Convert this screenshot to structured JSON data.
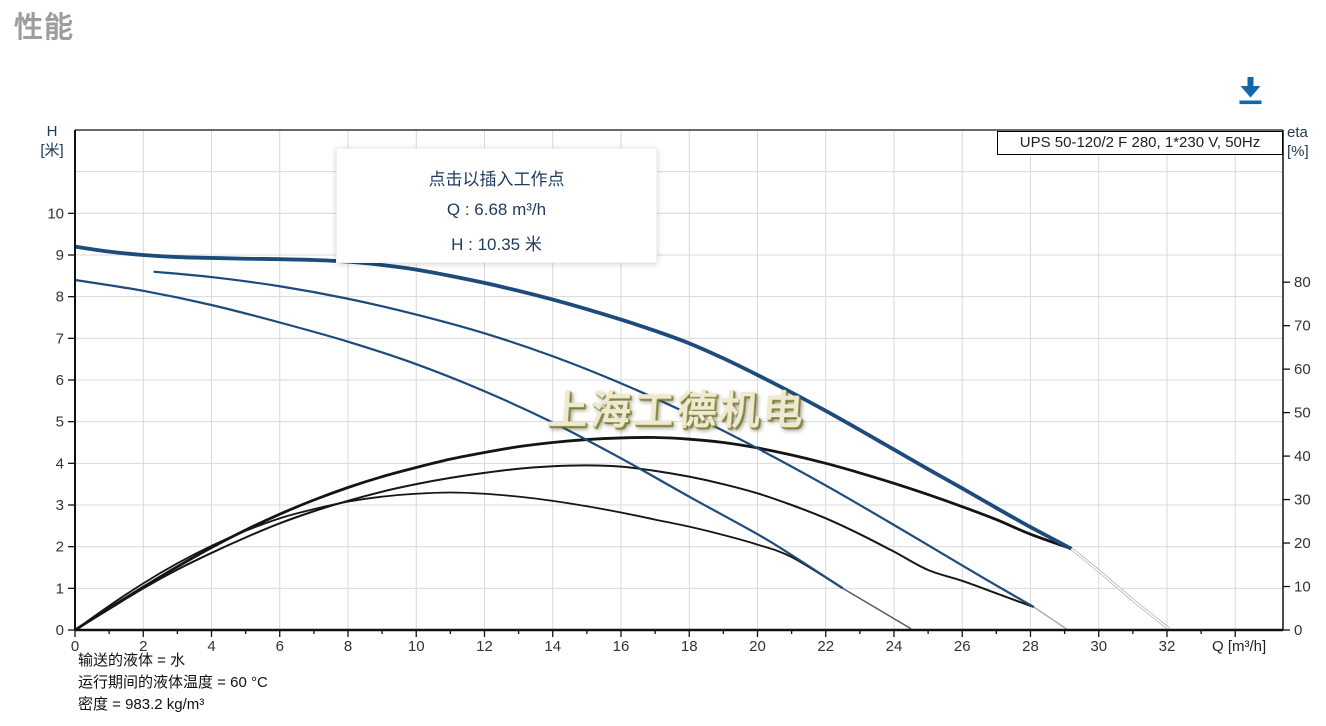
{
  "page": {
    "title": "性能"
  },
  "toolbar": {
    "download_icon": "download-arrow",
    "accent_color": "#1268ad"
  },
  "chart_data": {
    "type": "line",
    "pump_label": "UPS 50-120/2 F 280, 1*230 V, 50Hz",
    "watermark": "上海工德机电",
    "tooltip": {
      "title": "点击以插入工作点",
      "q_value": "Q : 6.68 m³/h",
      "h_value": "H : 10.35 米"
    },
    "footnotes": [
      "输送的液体 = 水",
      "运行期间的液体温度 = 60 °C",
      "密度 = 983.2 kg/m³"
    ],
    "x_axis": {
      "title": "Q [m³/h]",
      "min": 0,
      "max": 35.4,
      "grid_step": 2,
      "minor_tick_step": 1,
      "major_tick_step": 2,
      "tick_max": 34,
      "label_max": 32
    },
    "y_left": {
      "name": "H",
      "unit": "[米]",
      "min": 0,
      "max": 12,
      "grid_step": 1,
      "tick_step": 1,
      "label_max": 10
    },
    "y_right": {
      "name": "eta",
      "unit": "[%]",
      "min": 0,
      "max": 115,
      "tick_step": 10,
      "label_max": 80
    },
    "grid_color": "#d9d9d9",
    "frame_color": "#111111",
    "tick_label_color": "#333333",
    "series": [
      {
        "name": "eta-curve-speed3",
        "axis": "left",
        "color": "#141414",
        "width": 2.8,
        "points": [
          [
            0,
            0
          ],
          [
            1,
            0.52
          ],
          [
            2,
            1.03
          ],
          [
            3,
            1.52
          ],
          [
            4,
            1.98
          ],
          [
            5,
            2.4
          ],
          [
            6,
            2.78
          ],
          [
            7,
            3.12
          ],
          [
            8,
            3.42
          ],
          [
            9,
            3.68
          ],
          [
            10,
            3.9
          ],
          [
            11,
            4.1
          ],
          [
            12,
            4.26
          ],
          [
            13,
            4.4
          ],
          [
            14,
            4.5
          ],
          [
            15,
            4.57
          ],
          [
            16,
            4.61
          ],
          [
            17,
            4.62
          ],
          [
            18,
            4.58
          ],
          [
            19,
            4.5
          ],
          [
            20,
            4.37
          ],
          [
            21,
            4.2
          ],
          [
            22,
            4.0
          ],
          [
            23,
            3.77
          ],
          [
            24,
            3.52
          ],
          [
            25,
            3.25
          ],
          [
            26,
            2.96
          ],
          [
            27,
            2.65
          ],
          [
            28,
            2.3
          ],
          [
            29.2,
            1.95
          ]
        ]
      },
      {
        "name": "eta-curve-speed2",
        "axis": "left",
        "color": "#161616",
        "width": 2,
        "points": [
          [
            0,
            0
          ],
          [
            1,
            0.5
          ],
          [
            2,
            1.0
          ],
          [
            3,
            1.45
          ],
          [
            4,
            1.85
          ],
          [
            5,
            2.22
          ],
          [
            6,
            2.56
          ],
          [
            7,
            2.85
          ],
          [
            8,
            3.1
          ],
          [
            9,
            3.32
          ],
          [
            10,
            3.5
          ],
          [
            11,
            3.65
          ],
          [
            12,
            3.77
          ],
          [
            13,
            3.87
          ],
          [
            14,
            3.93
          ],
          [
            15,
            3.95
          ],
          [
            16,
            3.92
          ],
          [
            17,
            3.82
          ],
          [
            18,
            3.68
          ],
          [
            19,
            3.5
          ],
          [
            20,
            3.28
          ],
          [
            21,
            3.0
          ],
          [
            22,
            2.68
          ],
          [
            23,
            2.3
          ],
          [
            24,
            1.88
          ],
          [
            25,
            1.44
          ],
          [
            26,
            1.18
          ],
          [
            27,
            0.88
          ],
          [
            28.1,
            0.55
          ]
        ]
      },
      {
        "name": "eta-curve-speed1",
        "axis": "left",
        "color": "#161616",
        "width": 1.8,
        "points": [
          [
            0,
            0
          ],
          [
            1,
            0.58
          ],
          [
            2,
            1.12
          ],
          [
            3,
            1.6
          ],
          [
            4,
            2.02
          ],
          [
            5,
            2.38
          ],
          [
            6,
            2.68
          ],
          [
            7,
            2.9
          ],
          [
            8,
            3.08
          ],
          [
            9,
            3.2
          ],
          [
            10,
            3.27
          ],
          [
            11,
            3.3
          ],
          [
            12,
            3.27
          ],
          [
            13,
            3.2
          ],
          [
            14,
            3.1
          ],
          [
            15,
            2.97
          ],
          [
            16,
            2.82
          ],
          [
            17,
            2.65
          ],
          [
            18,
            2.48
          ],
          [
            19,
            2.28
          ],
          [
            20,
            2.05
          ],
          [
            21,
            1.75
          ],
          [
            22.5,
            1.0
          ]
        ]
      },
      {
        "name": "head-curve-speed1",
        "axis": "left",
        "color": "#1d4b7c",
        "width": 2.2,
        "points": [
          [
            0,
            8.4
          ],
          [
            2,
            8.14
          ],
          [
            4,
            7.8
          ],
          [
            6,
            7.38
          ],
          [
            8,
            6.92
          ],
          [
            10,
            6.38
          ],
          [
            12,
            5.73
          ],
          [
            14,
            4.98
          ],
          [
            16,
            4.12
          ],
          [
            18,
            3.2
          ],
          [
            20,
            2.3
          ],
          [
            21,
            1.8
          ],
          [
            22.5,
            1.0
          ]
        ]
      },
      {
        "name": "head-curve-speed2",
        "axis": "left",
        "color": "#1d4b7c",
        "width": 2.2,
        "points": [
          [
            2.3,
            8.6
          ],
          [
            4,
            8.47
          ],
          [
            6,
            8.25
          ],
          [
            8,
            7.95
          ],
          [
            10,
            7.57
          ],
          [
            12,
            7.12
          ],
          [
            14,
            6.57
          ],
          [
            16,
            5.92
          ],
          [
            18,
            5.18
          ],
          [
            20,
            4.36
          ],
          [
            22,
            3.47
          ],
          [
            24,
            2.52
          ],
          [
            26,
            1.55
          ],
          [
            27,
            1.07
          ],
          [
            28.1,
            0.55
          ]
        ]
      },
      {
        "name": "head-curve-speed3",
        "axis": "left",
        "color": "#1d4b7c",
        "width": 3.8,
        "points": [
          [
            0,
            9.2
          ],
          [
            1,
            9.08
          ],
          [
            2,
            9.0
          ],
          [
            3,
            8.95
          ],
          [
            4,
            8.93
          ],
          [
            5,
            8.91
          ],
          [
            6,
            8.9
          ],
          [
            7,
            8.88
          ],
          [
            8,
            8.84
          ],
          [
            9,
            8.76
          ],
          [
            10,
            8.65
          ],
          [
            11,
            8.5
          ],
          [
            12,
            8.33
          ],
          [
            13,
            8.14
          ],
          [
            14,
            7.93
          ],
          [
            15,
            7.7
          ],
          [
            16,
            7.45
          ],
          [
            17,
            7.18
          ],
          [
            18,
            6.88
          ],
          [
            19,
            6.52
          ],
          [
            20,
            6.12
          ],
          [
            21,
            5.7
          ],
          [
            22,
            5.26
          ],
          [
            23,
            4.8
          ],
          [
            24,
            4.33
          ],
          [
            25,
            3.86
          ],
          [
            26,
            3.4
          ],
          [
            27,
            2.93
          ],
          [
            28,
            2.47
          ],
          [
            29.2,
            1.95
          ]
        ]
      },
      {
        "name": "head-curve-speed1-extension",
        "axis": "left",
        "color": "#565c63",
        "width": 1.5,
        "points": [
          [
            22.5,
            1.0
          ],
          [
            24.5,
            0.03
          ]
        ]
      },
      {
        "name": "head-curve-speed2-extension",
        "axis": "left",
        "color": "#a9afb5",
        "width": 1.5,
        "points": [
          [
            28.1,
            0.55
          ],
          [
            29.05,
            0.03
          ]
        ]
      },
      {
        "name": "head-curve-speed3-extension",
        "axis": "left",
        "color": "#a9afb5",
        "width": 3,
        "overlay": "#ffffff",
        "overlay_width": 1.6,
        "points": [
          [
            29.2,
            1.95
          ],
          [
            30,
            1.42
          ],
          [
            31,
            0.72
          ],
          [
            32.05,
            0.03
          ]
        ]
      }
    ]
  }
}
